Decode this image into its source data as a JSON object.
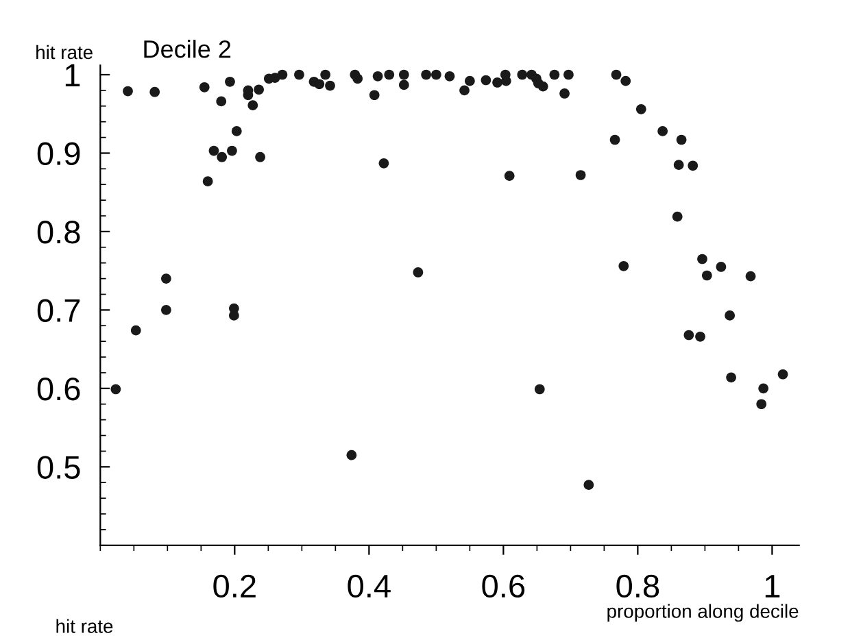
{
  "chart_data": {
    "type": "scatter",
    "title": "Decile 2",
    "ylabel": "hit rate",
    "xlabel": "proportion along decile",
    "annotations": [
      "hit rate"
    ],
    "x": [
      0.023,
      0.041,
      0.053,
      0.081,
      0.098,
      0.098,
      0.155,
      0.16,
      0.169,
      0.18,
      0.181,
      0.193,
      0.196,
      0.199,
      0.199,
      0.203,
      0.22,
      0.22,
      0.227,
      0.236,
      0.238,
      0.251,
      0.26,
      0.271,
      0.296,
      0.318,
      0.326,
      0.335,
      0.342,
      0.374,
      0.379,
      0.383,
      0.408,
      0.413,
      0.422,
      0.43,
      0.452,
      0.452,
      0.473,
      0.485,
      0.5,
      0.52,
      0.542,
      0.55,
      0.574,
      0.591,
      0.603,
      0.604,
      0.609,
      0.628,
      0.642,
      0.649,
      0.652,
      0.654,
      0.659,
      0.676,
      0.691,
      0.697,
      0.715,
      0.727,
      0.766,
      0.768,
      0.779,
      0.782,
      0.805,
      0.837,
      0.859,
      0.861,
      0.865,
      0.876,
      0.882,
      0.893,
      0.896,
      0.903,
      0.924,
      0.937,
      0.939,
      0.968,
      0.984,
      0.987,
      1.016
    ],
    "values": [
      0.599,
      0.979,
      0.674,
      0.978,
      0.74,
      0.7,
      0.984,
      0.864,
      0.903,
      0.966,
      0.895,
      0.991,
      0.903,
      0.702,
      0.693,
      0.928,
      0.98,
      0.974,
      0.961,
      0.981,
      0.895,
      0.995,
      0.996,
      1.0,
      1.0,
      0.991,
      0.988,
      1.0,
      0.986,
      0.515,
      1.0,
      0.995,
      0.974,
      0.998,
      0.887,
      1.0,
      1.0,
      0.987,
      0.748,
      1.0,
      1.0,
      0.998,
      0.98,
      0.992,
      0.993,
      0.99,
      1.0,
      0.992,
      0.871,
      1.0,
      1.0,
      0.995,
      0.989,
      0.599,
      0.985,
      1.0,
      0.976,
      1.0,
      0.872,
      0.477,
      0.917,
      1.0,
      0.756,
      0.992,
      0.956,
      0.928,
      0.819,
      0.885,
      0.917,
      0.668,
      0.884,
      0.666,
      0.765,
      0.744,
      0.755,
      0.693,
      0.614,
      0.743,
      0.58,
      0.6,
      0.618
    ],
    "color": "#1a1a1a",
    "marker": "circle",
    "xlim": [
      0,
      1.04
    ],
    "ylim": [
      0.4,
      1.012
    ],
    "xticks": [
      0.2,
      0.4,
      0.6,
      0.8,
      1
    ],
    "yticks": [
      0.5,
      0.6,
      0.7,
      0.8,
      0.9,
      1
    ],
    "grid": false,
    "legend": false
  }
}
